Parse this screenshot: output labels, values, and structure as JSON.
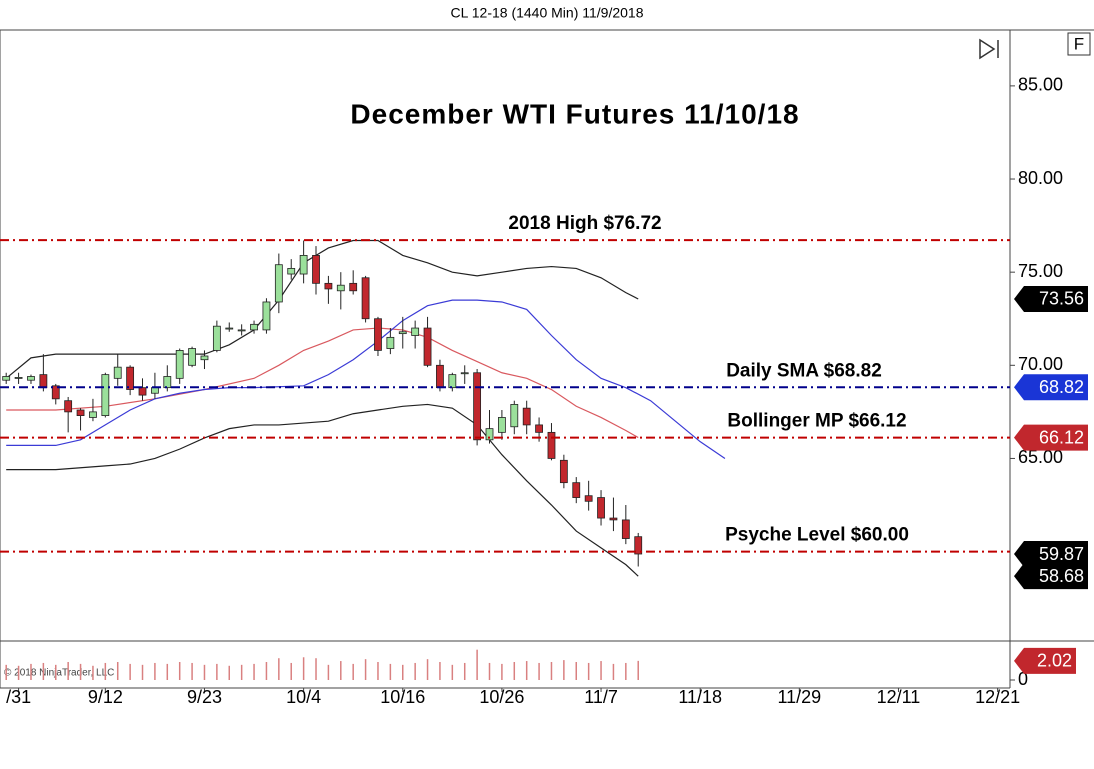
{
  "chart_data": {
    "type": "candlestick",
    "header": "CL 12-18 (1440 Min)  11/9/2018",
    "title": "December WTI Futures 11/10/18",
    "panel_button": "F",
    "copyright": "© 2018 NinjaTrader, LLC",
    "xlim": [
      -0.5,
      81
    ],
    "xticks": [
      {
        "value": 1,
        "label": "/31"
      },
      {
        "value": 8,
        "label": "9/12"
      },
      {
        "value": 16,
        "label": "9/23"
      },
      {
        "value": 24,
        "label": "10/4"
      },
      {
        "value": 32,
        "label": "10/16"
      },
      {
        "value": 40,
        "label": "10/26"
      },
      {
        "value": 48,
        "label": "11/7"
      },
      {
        "value": 56,
        "label": "11/18"
      },
      {
        "value": 64,
        "label": "11/29"
      },
      {
        "value": 72,
        "label": "12/11"
      },
      {
        "value": 80,
        "label": "12/21"
      }
    ],
    "ylim": [
      55.2,
      88.0
    ],
    "yticks": [
      {
        "value": 65,
        "label": "65.00"
      },
      {
        "value": 70,
        "label": "70.00"
      },
      {
        "value": 75,
        "label": "75.00"
      },
      {
        "value": 80,
        "label": "80.00"
      },
      {
        "value": 85,
        "label": "85.00"
      }
    ],
    "up_color": "#9be09b",
    "down_color": "#c1272d",
    "x": [
      0,
      1,
      2,
      3,
      4,
      5,
      6,
      7,
      8,
      9,
      10,
      11,
      12,
      13,
      14,
      15,
      16,
      17,
      18,
      19,
      20,
      21,
      22,
      23,
      24,
      25,
      26,
      27,
      28,
      29,
      30,
      31,
      32,
      33,
      34,
      35,
      36,
      37,
      38,
      39,
      40,
      41,
      42,
      43,
      44,
      45,
      46,
      47,
      48,
      49,
      50,
      51
    ],
    "open": [
      69.2,
      69.3,
      69.2,
      69.5,
      68.9,
      68.1,
      67.6,
      67.2,
      67.3,
      69.3,
      69.9,
      68.8,
      68.5,
      68.8,
      69.3,
      70.0,
      70.3,
      70.8,
      72.0,
      71.9,
      71.9,
      71.9,
      73.4,
      74.9,
      74.9,
      75.9,
      74.4,
      74.0,
      74.4,
      74.7,
      72.5,
      70.9,
      71.7,
      71.6,
      72.0,
      70.0,
      68.8,
      69.6,
      69.6,
      66.0,
      66.4,
      66.7,
      67.7,
      66.8,
      66.4,
      64.9,
      63.7,
      63.0,
      62.9,
      61.8,
      61.7,
      60.8
    ],
    "high": [
      69.6,
      69.6,
      69.5,
      70.6,
      69.0,
      68.3,
      67.7,
      68.2,
      69.6,
      70.6,
      70.0,
      69.3,
      69.6,
      70.0,
      70.9,
      71.0,
      70.8,
      72.4,
      72.3,
      72.2,
      72.4,
      73.6,
      76.0,
      75.7,
      76.7,
      76.4,
      74.8,
      75.0,
      75.1,
      74.8,
      72.6,
      72.0,
      72.6,
      72.4,
      72.6,
      70.3,
      69.6,
      70.0,
      69.8,
      67.6,
      67.6,
      68.1,
      68.1,
      67.2,
      66.9,
      65.2,
      64.0,
      63.8,
      63.3,
      62.9,
      62.5,
      61.0
    ],
    "low": [
      69.0,
      69.0,
      69.0,
      68.6,
      67.9,
      66.4,
      66.5,
      67.0,
      67.2,
      68.9,
      68.4,
      68.1,
      68.2,
      68.6,
      69.0,
      69.9,
      69.8,
      70.7,
      71.8,
      71.6,
      71.7,
      71.7,
      72.8,
      74.6,
      74.4,
      73.8,
      73.3,
      73.0,
      73.8,
      72.3,
      70.5,
      70.6,
      70.9,
      70.9,
      69.9,
      68.6,
      68.6,
      69.0,
      65.7,
      65.8,
      66.0,
      66.3,
      66.3,
      65.9,
      64.9,
      63.4,
      62.6,
      62.2,
      61.4,
      61.1,
      60.4,
      59.2
    ],
    "close": [
      69.4,
      69.35,
      69.4,
      68.8,
      68.2,
      67.5,
      67.3,
      67.5,
      69.5,
      69.9,
      68.7,
      68.4,
      68.8,
      69.4,
      70.8,
      70.9,
      70.5,
      72.1,
      72.0,
      71.9,
      72.2,
      73.4,
      75.4,
      75.2,
      75.9,
      74.4,
      74.1,
      74.3,
      74.0,
      72.5,
      70.8,
      71.5,
      71.8,
      72.0,
      70.0,
      68.8,
      69.5,
      69.6,
      66.0,
      66.6,
      67.2,
      67.9,
      66.8,
      66.4,
      65.0,
      63.7,
      62.9,
      62.7,
      61.8,
      61.7,
      60.7,
      59.87
    ],
    "lines": [
      {
        "color": "#222222",
        "x": [
          0,
          2,
          4,
          8,
          12,
          16,
          18,
          20,
          22,
          24,
          26,
          28,
          30,
          32,
          34,
          36,
          38,
          40,
          42,
          44,
          46,
          48,
          50,
          51
        ],
        "values": [
          69.3,
          70.4,
          70.6,
          70.6,
          70.6,
          70.6,
          71.1,
          71.9,
          73.5,
          75.5,
          76.3,
          76.7,
          76.7,
          75.9,
          75.5,
          75.0,
          74.8,
          75.0,
          75.2,
          75.3,
          75.2,
          74.7,
          73.9,
          73.56
        ]
      },
      {
        "color": "#222222",
        "x": [
          0,
          2,
          4,
          6,
          8,
          10,
          12,
          14,
          16,
          18,
          20,
          22,
          24,
          26,
          28,
          30,
          32,
          34,
          36,
          38,
          40,
          42,
          44,
          46,
          48,
          50,
          51
        ],
        "values": [
          64.4,
          64.4,
          64.4,
          64.5,
          64.6,
          64.7,
          65.0,
          65.5,
          66.1,
          66.6,
          66.8,
          66.8,
          66.9,
          67.0,
          67.4,
          67.6,
          67.8,
          67.9,
          67.7,
          66.8,
          65.2,
          63.8,
          62.5,
          61.1,
          60.2,
          59.3,
          58.68
        ]
      },
      {
        "color": "#d9595f",
        "x": [
          0,
          4,
          8,
          12,
          16,
          20,
          22,
          24,
          26,
          28,
          30,
          32,
          34,
          36,
          38,
          40,
          42,
          44,
          46,
          48,
          50,
          51
        ],
        "values": [
          67.6,
          67.6,
          67.8,
          68.2,
          68.7,
          69.3,
          70.0,
          70.8,
          71.3,
          71.9,
          72.0,
          71.9,
          71.5,
          70.8,
          70.2,
          69.6,
          69.3,
          68.7,
          67.8,
          67.2,
          66.5,
          66.12
        ]
      },
      {
        "color": "#3b3bd6",
        "x": [
          0,
          4,
          6,
          8,
          10,
          12,
          14,
          16,
          18,
          20,
          24,
          26,
          28,
          30,
          32,
          34,
          36,
          38,
          40,
          42,
          44,
          46,
          48,
          50,
          52,
          54,
          56,
          58
        ],
        "values": [
          65.7,
          65.7,
          66.0,
          66.8,
          67.6,
          68.2,
          68.5,
          68.7,
          68.8,
          68.8,
          68.9,
          69.5,
          70.3,
          71.3,
          72.4,
          73.2,
          73.5,
          73.5,
          73.4,
          73.0,
          71.6,
          70.3,
          69.3,
          68.8,
          68.1,
          67.0,
          65.9,
          65.0
        ]
      }
    ],
    "levels": [
      {
        "value": 76.72,
        "label": "2018 High $76.72",
        "color": "#c00000"
      },
      {
        "value": 68.82,
        "label": "Daily SMA $68.82",
        "color": "#00008b"
      },
      {
        "value": 66.12,
        "label": "Bollinger MP $66.12",
        "color": "#c00000"
      },
      {
        "value": 60.0,
        "label": "Psyche Level $60.00",
        "color": "#c00000"
      }
    ],
    "flags": [
      {
        "value": 73.56,
        "color": "#000000"
      },
      {
        "value": 68.82,
        "color": "#1a35d6"
      },
      {
        "value": 66.12,
        "color": "#c1272d"
      },
      {
        "value": 59.87,
        "color": "#000000"
      },
      {
        "value": 58.68,
        "color": "#000000"
      }
    ],
    "volume": {
      "values": [
        1.6,
        1.5,
        1.7,
        1.8,
        1.6,
        1.9,
        1.7,
        1.5,
        1.8,
        1.9,
        1.7,
        1.6,
        1.8,
        1.7,
        1.9,
        1.8,
        1.6,
        1.7,
        1.5,
        1.6,
        1.7,
        1.9,
        2.3,
        1.8,
        2.4,
        2.3,
        1.6,
        2.0,
        1.7,
        2.2,
        1.9,
        1.7,
        1.6,
        1.8,
        2.2,
        1.9,
        1.6,
        1.8,
        3.2,
        1.8,
        1.7,
        1.9,
        2.0,
        1.8,
        1.9,
        2.1,
        1.9,
        1.8,
        2.0,
        1.7,
        1.8,
        2.02
      ],
      "color": "#d98080",
      "ylim": [
        0,
        3.8
      ],
      "yticks": [
        0
      ],
      "flag": {
        "value": 2.02,
        "color": "#c1272d"
      }
    }
  }
}
